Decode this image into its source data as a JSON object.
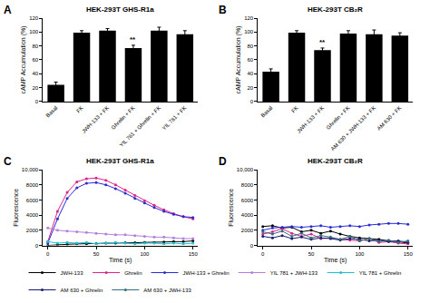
{
  "chart_data": [
    {
      "type": "bar",
      "title": "HEK-293T GHS-R1a",
      "y_label": "cAMP Accumulation (%)",
      "categories": [
        "Basal",
        "FK",
        "JWH-133 + FK",
        "Ghrelin + FK",
        "YIL 781 + Ghrelin + FK",
        "YIL 781 + FK"
      ],
      "values": [
        24,
        99,
        102,
        77,
        102,
        97
      ],
      "errors": [
        4,
        3,
        3,
        4,
        5,
        5
      ],
      "color": "#000000",
      "ylim": [
        0,
        120
      ],
      "yticks": [
        0,
        20,
        40,
        60,
        80,
        100,
        120
      ],
      "grid": false,
      "annotations": [
        {
          "text": "A"
        },
        {
          "text": "**",
          "category": "Ghrelin + FK"
        }
      ]
    },
    {
      "type": "bar",
      "title": "HEK-293T CB₂R",
      "y_label": "cAMP Accumulation (%)",
      "categories": [
        "Basal",
        "FK",
        "JWH-133 + FK",
        "Ghrelin + FK",
        "AM 630 + JWH-133 + FK",
        "AM 630 + FK"
      ],
      "values": [
        43,
        99,
        74,
        98,
        97,
        95
      ],
      "errors": [
        4,
        3,
        3,
        4,
        6,
        4
      ],
      "color": "#000000",
      "ylim": [
        0,
        120
      ],
      "yticks": [
        0,
        20,
        40,
        60,
        80,
        100,
        120
      ],
      "grid": false,
      "annotations": [
        {
          "text": "B"
        },
        {
          "text": "**",
          "category": "JWH-133 + FK"
        }
      ]
    },
    {
      "type": "line",
      "title": "HEK-293T GHS-R1a",
      "x_label": "Time (s)",
      "y_label": "Fluorescence",
      "x": [
        0,
        10,
        20,
        30,
        40,
        50,
        60,
        70,
        80,
        90,
        100,
        110,
        120,
        130,
        140,
        150
      ],
      "xlim": [
        -5,
        155
      ],
      "xticks": [
        0,
        50,
        100,
        150
      ],
      "ylim": [
        0,
        10000
      ],
      "yticks": [
        0,
        2000,
        4000,
        6000,
        8000,
        {
          "value": 10000,
          "label": "10,000"
        }
      ],
      "grid": false,
      "legend": "bottom",
      "marker": "circle",
      "line_style": "solid",
      "annotations": [
        {
          "text": "C"
        }
      ],
      "series": [
        {
          "name": "JWH-133",
          "color": "#000000",
          "values": [
            0,
            100,
            150,
            200,
            200,
            250,
            300,
            300,
            350,
            350,
            400,
            400,
            450,
            500,
            500,
            600
          ]
        },
        {
          "name": "Ghrelin",
          "color": "#e0218a",
          "values": [
            500,
            4500,
            7000,
            8400,
            8800,
            8900,
            8600,
            8000,
            7300,
            6600,
            5900,
            5300,
            4700,
            4200,
            3800,
            3500
          ]
        },
        {
          "name": "JWH-133 + Ghrelin",
          "color": "#2b2bd4",
          "values": [
            300,
            3500,
            6200,
            7600,
            8200,
            8300,
            8000,
            7500,
            6900,
            6200,
            5600,
            5000,
            4500,
            4100,
            3800,
            3700
          ]
        },
        {
          "name": "YIL 781 + JWH-133",
          "color": "#b57edc",
          "values": [
            2300,
            2000,
            1900,
            1800,
            1700,
            1600,
            1500,
            1400,
            1400,
            1300,
            1200,
            1100,
            1100,
            1000,
            900,
            900
          ]
        },
        {
          "name": "YIL 781 + Ghrelin",
          "color": "#20c0d0",
          "values": [
            500,
            300,
            400,
            300,
            400,
            200,
            300,
            400,
            300,
            200,
            300,
            300,
            200,
            300,
            200,
            300
          ]
        }
      ]
    },
    {
      "type": "line",
      "title": "HEK-293T CB₂R",
      "x_label": "Time (s)",
      "y_label": "Fluorescence",
      "x": [
        0,
        10,
        20,
        30,
        40,
        50,
        60,
        70,
        80,
        90,
        100,
        110,
        120,
        130,
        140,
        150
      ],
      "xlim": [
        -5,
        155
      ],
      "xticks": [
        0,
        50,
        100,
        150
      ],
      "ylim": [
        0,
        10000
      ],
      "yticks": [
        0,
        2000,
        4000,
        6000,
        8000,
        {
          "value": 10000,
          "label": "10,000"
        }
      ],
      "grid": false,
      "marker": "circle",
      "line_style": "solid",
      "annotations": [
        {
          "text": "D"
        }
      ],
      "series": [
        {
          "name": "JWH-133",
          "color": "#000000",
          "values": [
            2500,
            2600,
            2300,
            2400,
            1800,
            2000,
            1600,
            1900,
            1500,
            1200,
            1000,
            900,
            800,
            600,
            500,
            300
          ]
        },
        {
          "name": "Ghrelin",
          "color": "#e0218a",
          "values": [
            1500,
            1800,
            2200,
            1600,
            1200,
            1500,
            900,
            1000,
            800,
            700,
            600,
            900,
            400,
            500,
            300,
            200
          ]
        },
        {
          "name": "JWH-133 + Ghrelin",
          "color": "#2b2bd4",
          "values": [
            2000,
            2300,
            2400,
            2500,
            2400,
            2500,
            2600,
            2400,
            2500,
            2600,
            2500,
            2700,
            2800,
            2900,
            2900,
            2800
          ]
        },
        {
          "name": "AM 630 + Ghrelin",
          "color": "#1a1a6e",
          "values": [
            1200,
            1000,
            1300,
            900,
            1100,
            800,
            1000,
            900,
            700,
            900,
            800,
            600,
            700,
            500,
            600,
            400
          ]
        },
        {
          "name": "AM 630 + JWH-133",
          "color": "#2f6f7f",
          "values": [
            1800,
            1500,
            1900,
            1200,
            1600,
            1000,
            1300,
            1100,
            800,
            1200,
            600,
            900,
            500,
            700,
            400,
            600
          ]
        }
      ]
    }
  ]
}
